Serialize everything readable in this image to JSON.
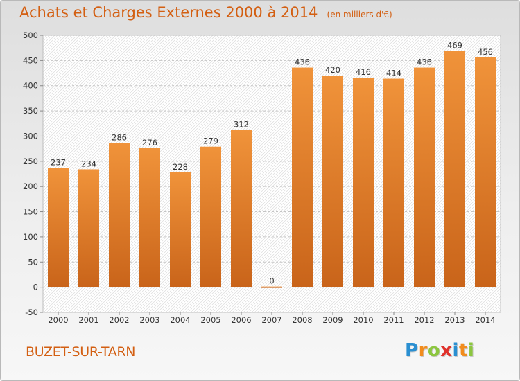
{
  "chart_data": {
    "type": "bar",
    "title": "Achats et Charges Externes 2000 à 2014",
    "subtitle": "(en milliers d'€)",
    "categories": [
      "2000",
      "2001",
      "2002",
      "2003",
      "2004",
      "2005",
      "2006",
      "2007",
      "2008",
      "2009",
      "2010",
      "2011",
      "2012",
      "2013",
      "2014"
    ],
    "values": [
      237,
      234,
      286,
      276,
      228,
      279,
      312,
      0,
      436,
      420,
      416,
      414,
      436,
      469,
      456
    ],
    "ylim": [
      -50,
      500
    ],
    "yticks": [
      -50,
      0,
      50,
      100,
      150,
      200,
      250,
      300,
      350,
      400,
      450,
      500
    ],
    "grid": true,
    "bar_color": "#f0933a",
    "bar_color_dark": "#c9641a"
  },
  "footer": {
    "place": "BUZET-SUR-TARN",
    "brand_letters": [
      {
        "ch": "P",
        "color": "#2a8fd1"
      },
      {
        "ch": "r",
        "color": "#f28c1c"
      },
      {
        "ch": "o",
        "color": "#8cc63f"
      },
      {
        "ch": "x",
        "color": "#e0312b"
      },
      {
        "ch": "i",
        "color": "#2a8fd1"
      },
      {
        "ch": "t",
        "color": "#f28c1c"
      },
      {
        "ch": "i",
        "color": "#8cc63f"
      }
    ]
  }
}
